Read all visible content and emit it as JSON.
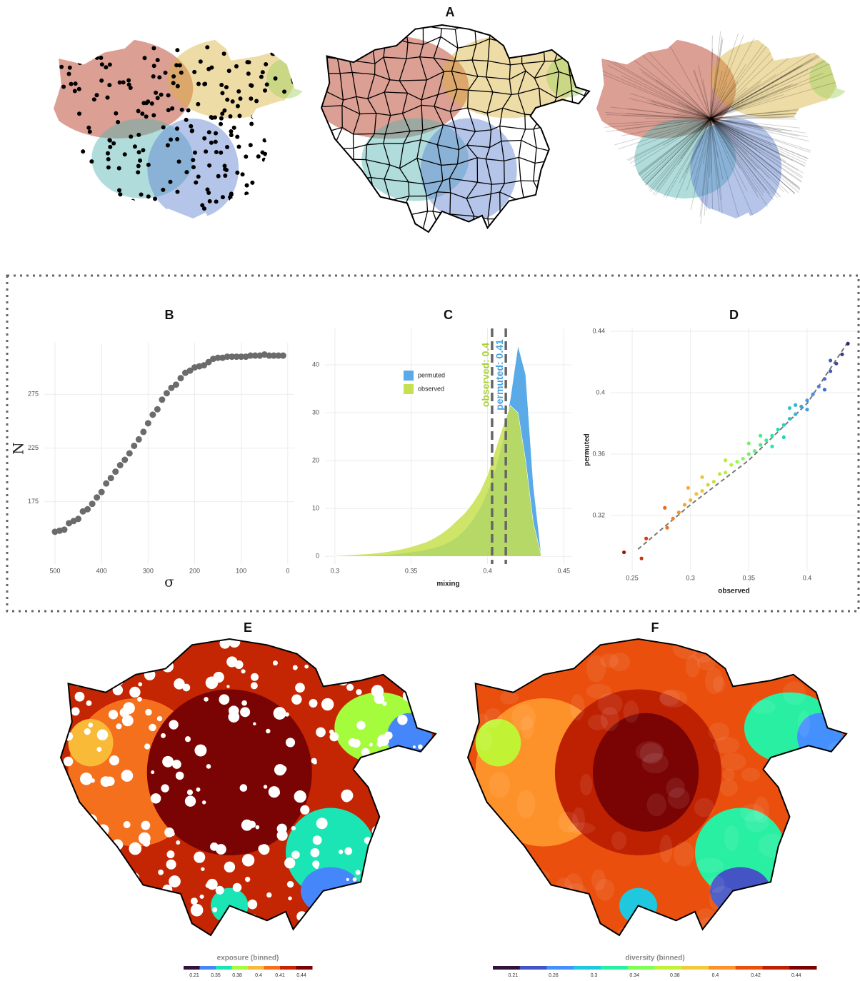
{
  "maps": [
    {
      "label": "A"
    },
    {
      "label": "E",
      "legend_title": "exposure (binned)",
      "legend_ticks": [
        0.21,
        0.35,
        0.38,
        0.4,
        0.41,
        0.44
      ],
      "colors": [
        "#30123b",
        "#4686fb",
        "#1be5b5",
        "#a4fc3c",
        "#f9ba38",
        "#f5701d",
        "#c42503",
        "#7a0403"
      ]
    },
    {
      "label": "F",
      "legend_title": "diversity (binned)",
      "legend_ticks": [
        0.21,
        0.26,
        0.3,
        0.34,
        0.38,
        0.4,
        0.42,
        0.44
      ],
      "colors": [
        "#30123b",
        "#4454c4",
        "#4490fe",
        "#1fc8de",
        "#29efa2",
        "#7dff56",
        "#c1f334",
        "#f1ca3a",
        "#fe922a",
        "#ea4f0d",
        "#be2102",
        "#7a0403"
      ]
    }
  ],
  "chart_data": [
    {
      "type": "scatter",
      "title": "B",
      "xlabel": "σ",
      "ylabel": "N",
      "color": "#6b6b6b",
      "grid": true,
      "x": [
        500,
        490,
        480,
        470,
        460,
        450,
        440,
        430,
        420,
        410,
        400,
        390,
        380,
        370,
        360,
        350,
        340,
        330,
        320,
        310,
        300,
        290,
        280,
        270,
        260,
        250,
        240,
        230,
        220,
        210,
        200,
        190,
        180,
        170,
        160,
        150,
        140,
        130,
        120,
        110,
        100,
        90,
        80,
        70,
        60,
        50,
        40,
        30,
        20,
        10
      ],
      "values": [
        147,
        148,
        149,
        155,
        157,
        159,
        166,
        168,
        173,
        179,
        184,
        192,
        197,
        203,
        209,
        214,
        220,
        227,
        233,
        240,
        248,
        256,
        261,
        270,
        276,
        281,
        284,
        290,
        295,
        297,
        300,
        301,
        302,
        305,
        308,
        309,
        309,
        310,
        310,
        310,
        310,
        310,
        311,
        311,
        311,
        312,
        311,
        311,
        311,
        311
      ],
      "xlim": [
        523,
        -14
      ],
      "ylim": [
        117,
        323
      ],
      "xticks": [
        500,
        400,
        300,
        200,
        100,
        0
      ],
      "yticks": [
        175,
        225,
        275
      ]
    },
    {
      "type": "area",
      "title": "C",
      "xlabel": "mixing",
      "grid": true,
      "x": [
        0.3,
        0.305,
        0.31,
        0.315,
        0.32,
        0.325,
        0.33,
        0.335,
        0.34,
        0.345,
        0.35,
        0.355,
        0.36,
        0.365,
        0.37,
        0.375,
        0.38,
        0.385,
        0.39,
        0.395,
        0.4,
        0.405,
        0.41,
        0.415,
        0.42,
        0.425,
        0.43,
        0.435
      ],
      "series": [
        {
          "name": "permuted",
          "color": "#5aaae8",
          "values": [
            0,
            0,
            0,
            0.1,
            0.1,
            0.2,
            0.3,
            0.4,
            0.5,
            0.7,
            0.9,
            1.1,
            1.4,
            1.8,
            2.3,
            3,
            4,
            5.5,
            7.5,
            10,
            13.5,
            18,
            24,
            33,
            44,
            38,
            15,
            1
          ]
        },
        {
          "name": "observed",
          "color": "#c5e14f",
          "values": [
            0.1,
            0.2,
            0.3,
            0.4,
            0.5,
            0.6,
            0.8,
            1,
            1.3,
            1.6,
            2,
            2.5,
            3,
            3.8,
            4.8,
            6,
            7.5,
            9,
            11,
            13.5,
            17,
            22,
            27,
            31.5,
            30,
            20,
            7,
            0.5
          ]
        }
      ],
      "vlines": [
        {
          "value": 0.403,
          "label": "observed: 0.4",
          "color": "#a8cf36"
        },
        {
          "value": 0.412,
          "label": "permuted: 0.41",
          "color": "#4aa3df"
        }
      ],
      "xlim": [
        0.2935,
        0.455
      ],
      "ylim": [
        -1.6,
        47.6
      ],
      "xticks": [
        0.3,
        0.35,
        0.4,
        0.45
      ],
      "yticks": [
        0,
        10,
        20,
        30,
        40
      ]
    },
    {
      "type": "scatter",
      "title": "D",
      "xlabel": "observed",
      "ylabel": "permuted",
      "grid": true,
      "colormap": [
        "#7a0403",
        "#e4460a",
        "#fbb938",
        "#a4fc3c",
        "#1be5b5",
        "#4686fb",
        "#30123b"
      ],
      "x": [
        0.243,
        0.258,
        0.262,
        0.278,
        0.28,
        0.285,
        0.29,
        0.295,
        0.3,
        0.305,
        0.31,
        0.315,
        0.32,
        0.325,
        0.33,
        0.335,
        0.34,
        0.345,
        0.35,
        0.355,
        0.36,
        0.365,
        0.37,
        0.375,
        0.38,
        0.385,
        0.39,
        0.395,
        0.4,
        0.405,
        0.41,
        0.415,
        0.42,
        0.425,
        0.43,
        0.435,
        0.33,
        0.36,
        0.37,
        0.39,
        0.4,
        0.38,
        0.31,
        0.35,
        0.42,
        0.415,
        0.298,
        0.385
      ],
      "values": [
        0.296,
        0.292,
        0.305,
        0.325,
        0.312,
        0.318,
        0.322,
        0.327,
        0.33,
        0.334,
        0.336,
        0.34,
        0.342,
        0.347,
        0.348,
        0.353,
        0.355,
        0.357,
        0.36,
        0.362,
        0.366,
        0.369,
        0.372,
        0.376,
        0.379,
        0.383,
        0.386,
        0.391,
        0.395,
        0.399,
        0.404,
        0.409,
        0.414,
        0.419,
        0.425,
        0.432,
        0.356,
        0.372,
        0.365,
        0.392,
        0.389,
        0.371,
        0.345,
        0.367,
        0.421,
        0.402,
        0.338,
        0.39
      ],
      "trend_line": {
        "x": [
          0.255,
          0.3,
          0.35,
          0.4,
          0.435
        ],
        "y": [
          0.298,
          0.327,
          0.356,
          0.393,
          0.433
        ]
      },
      "xlim": [
        0.2316,
        0.4429
      ],
      "ylim": [
        0.2837,
        0.4419
      ],
      "xticks": [
        0.25,
        0.3,
        0.35,
        0.4
      ],
      "yticks": [
        0.32,
        0.36,
        0.4,
        0.44
      ]
    }
  ]
}
